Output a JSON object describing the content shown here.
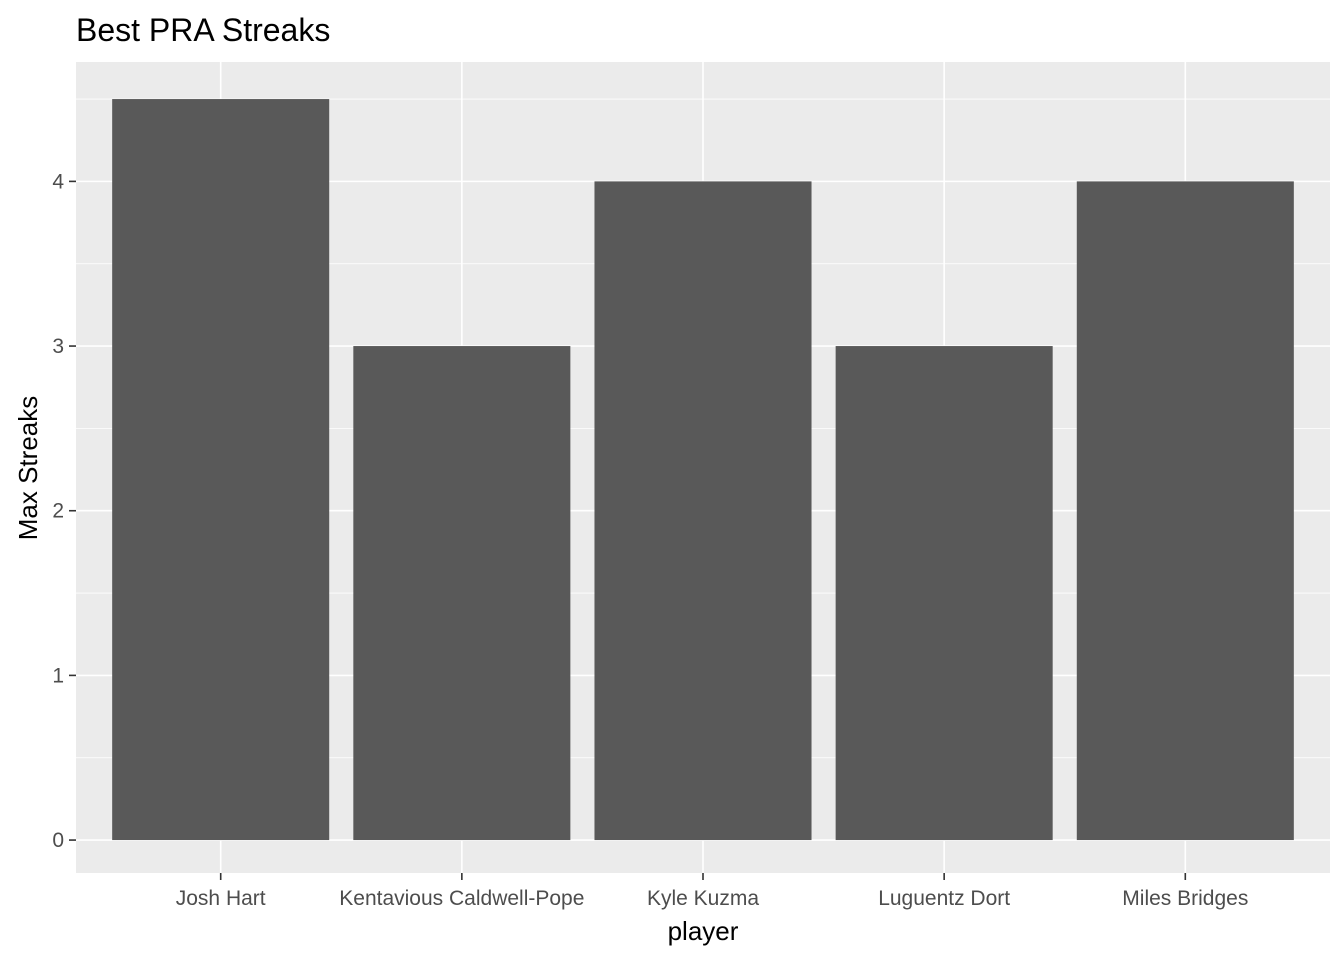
{
  "colors": {
    "panel_background": "#ebebeb",
    "grid_major": "#ffffff",
    "bar_fill": "#595959",
    "tick_mark": "#333333",
    "tick_label": "#4d4d4d",
    "text": "#000000"
  },
  "chart_data": {
    "type": "bar",
    "title": "Best PRA Streaks",
    "xlabel": "player",
    "ylabel": "Max Streaks",
    "categories": [
      "Josh Hart",
      "Kentavious Caldwell-Pope",
      "Kyle Kuzma",
      "Luguentz Dort",
      "Miles Bridges"
    ],
    "values": [
      4.5,
      3,
      4,
      3,
      4
    ],
    "ylim": [
      -0.2,
      4.725
    ],
    "yticks": [
      0,
      1,
      2,
      3,
      4
    ],
    "ytick_labels": [
      "0",
      "1",
      "2",
      "3",
      "4"
    ],
    "grid": true,
    "legend": "none"
  }
}
